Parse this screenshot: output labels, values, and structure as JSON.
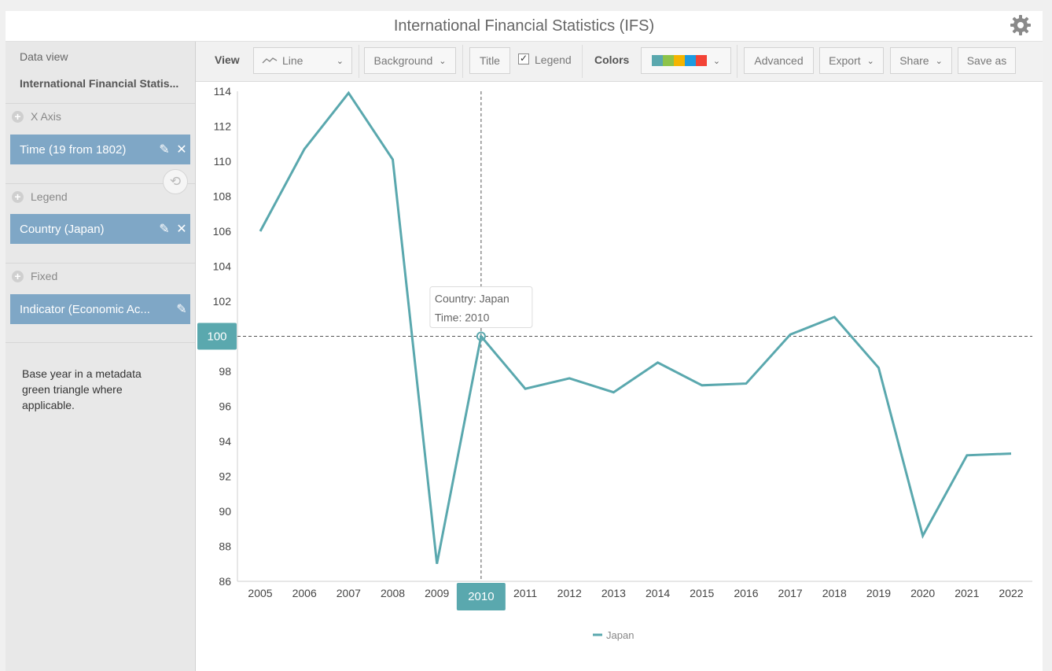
{
  "app": {
    "title": "International Financial Statistics (IFS)"
  },
  "sidebar": {
    "data_view_label": "Data view",
    "data_view_value": "International Financial Statis...",
    "x_axis_header": "X Axis",
    "x_axis_chip": "Time (19 from 1802)",
    "legend_header": "Legend",
    "legend_chip": "Country (Japan)",
    "fixed_header": "Fixed",
    "fixed_chip": "Indicator (Economic Ac...",
    "note": "Base year in a metadata green triangle where applicable."
  },
  "toolbar": {
    "view_label": "View",
    "view_select": "Line",
    "background_label": "Background",
    "title_label": "Title",
    "legend_label": "Legend",
    "legend_checked": true,
    "colors_label": "Colors",
    "palette": [
      "#5aa8ae",
      "#8dc34a",
      "#f4b400",
      "#1e9be0",
      "#f34336"
    ],
    "advanced_label": "Advanced",
    "export_label": "Export",
    "share_label": "Share",
    "save_as_label": "Save as"
  },
  "tooltip": {
    "country": "Country: Japan",
    "time": "Time: 2010"
  },
  "crosshair": {
    "x_label": "2010",
    "y_label": "100"
  },
  "colors": {
    "series": "#5aa8ae",
    "highlight": "#5aa8ae",
    "chip": "#7fa7c6"
  },
  "chart_data": {
    "type": "line",
    "x": [
      2005,
      2006,
      2007,
      2008,
      2009,
      2010,
      2011,
      2012,
      2013,
      2014,
      2015,
      2016,
      2017,
      2018,
      2019,
      2020,
      2021,
      2022
    ],
    "series": [
      {
        "name": "Japan",
        "values": [
          106.0,
          110.7,
          113.9,
          110.1,
          87.0,
          100.0,
          97.0,
          97.6,
          96.8,
          98.5,
          97.2,
          97.3,
          100.1,
          101.1,
          98.2,
          88.6,
          93.2,
          93.3
        ]
      }
    ],
    "yticks": [
      86,
      88,
      90,
      92,
      94,
      96,
      98,
      100,
      102,
      104,
      106,
      108,
      110,
      112,
      114
    ],
    "ylim": [
      86,
      114
    ],
    "xlabel": "",
    "ylabel": "",
    "grid": false,
    "legend_placement": "bottom-center",
    "highlight_x": 2010,
    "highlight_y": 100
  }
}
